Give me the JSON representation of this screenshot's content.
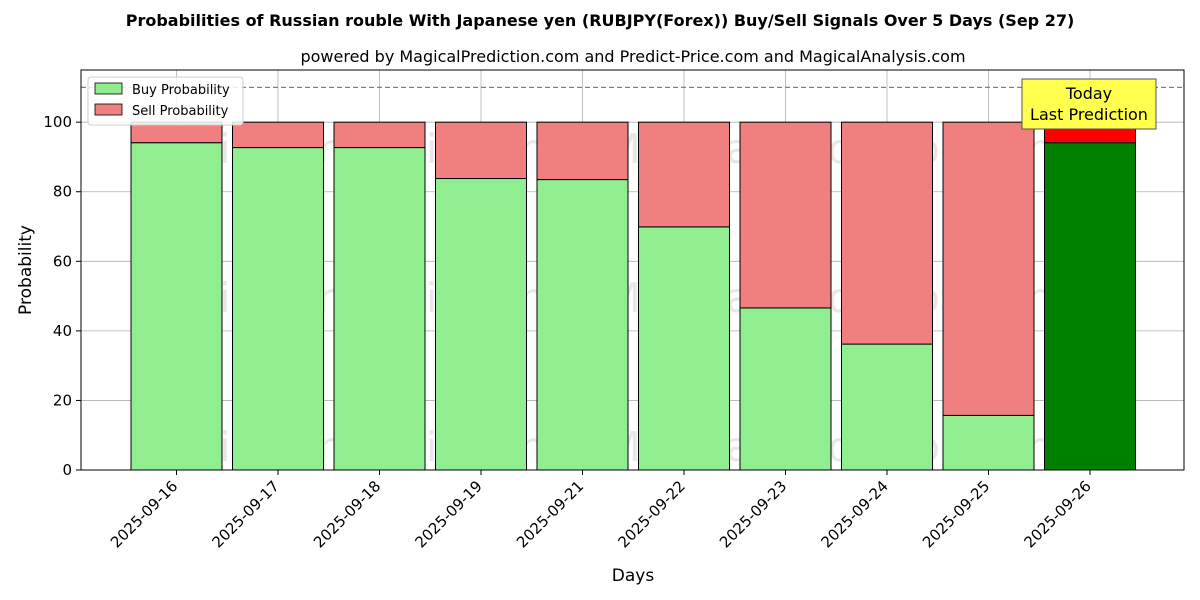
{
  "chart_data": {
    "type": "bar",
    "stacked": true,
    "title": "Probabilities of Russian rouble With Japanese yen (RUBJPY(Forex)) Buy/Sell Signals Over 5 Days (Sep 27)",
    "subtitle": "powered by MagicalPrediction.com and Predict-Price.com and MagicalAnalysis.com",
    "xlabel": "Days",
    "ylabel": "Probability",
    "ylim": [
      0,
      115
    ],
    "yticks": [
      0,
      20,
      40,
      60,
      80,
      100
    ],
    "reference_line": 110,
    "grid": true,
    "legend_position": "top-left",
    "categories": [
      "2025-09-16",
      "2025-09-17",
      "2025-09-18",
      "2025-09-19",
      "2025-09-21",
      "2025-09-22",
      "2025-09-23",
      "2025-09-24",
      "2025-09-25",
      "2025-09-26"
    ],
    "series": [
      {
        "name": "Buy Probability",
        "color": "#90ee90",
        "highlight_color": "#008000",
        "values": [
          94.1,
          92.7,
          92.7,
          83.8,
          83.5,
          69.9,
          46.6,
          36.2,
          15.7,
          94.1
        ]
      },
      {
        "name": "Sell Probability",
        "color": "#f08080",
        "highlight_color": "#ff0000",
        "values": [
          5.9,
          7.3,
          7.3,
          16.2,
          16.5,
          30.1,
          53.4,
          63.8,
          84.3,
          5.9
        ]
      }
    ],
    "highlight_index": 9,
    "annotation": {
      "line1": "Today",
      "line2": "Last Prediction",
      "color": "#ffff4d"
    },
    "watermarks": [
      "MagicalAnalysis.com",
      "MagicalPrediction.com"
    ]
  }
}
